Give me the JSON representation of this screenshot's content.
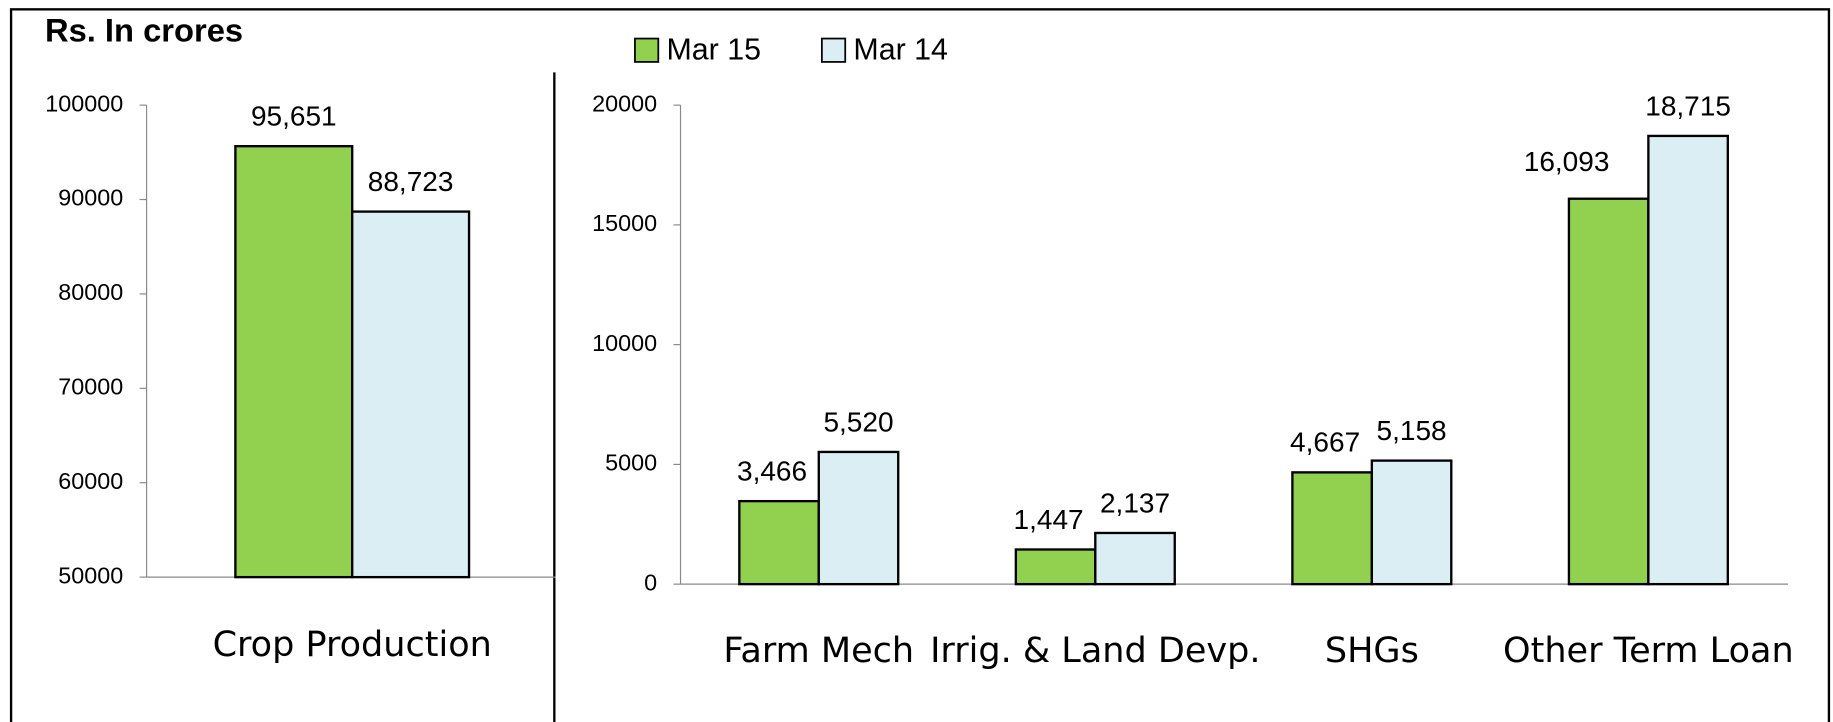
{
  "chart_data": [
    {
      "type": "bar",
      "title": "Rs. In crores",
      "categories": [
        "Crop Production"
      ],
      "series": [
        {
          "color": "#92d050",
          "values": [
            95651
          ],
          "value_labels": [
            "95,651"
          ]
        },
        {
          "color": "#dbeef4",
          "values": [
            88723
          ],
          "value_labels": [
            "88,723"
          ]
        }
      ],
      "ylim": [
        50000,
        100000
      ],
      "yticks": [
        50000,
        60000,
        70000,
        80000,
        90000,
        100000
      ]
    },
    {
      "type": "bar",
      "categories": [
        "Farm Mech",
        "Irrig. & Land Devp.",
        "SHGs",
        "Other Term Loan"
      ],
      "series": [
        {
          "name": "Mar 15",
          "color": "#92d050",
          "values": [
            3466,
            1447,
            4667,
            16093
          ],
          "value_labels": [
            "3,466",
            "1,447",
            "4,667",
            "16,093"
          ]
        },
        {
          "name": "Mar 14",
          "color": "#dbeef4",
          "values": [
            5520,
            2137,
            5158,
            18715
          ],
          "value_labels": [
            "5,520",
            "2,137",
            "5,158",
            "18,715"
          ]
        }
      ],
      "ylim": [
        0,
        20000
      ],
      "yticks": [
        0,
        5000,
        10000,
        15000,
        20000
      ],
      "legend": "top"
    }
  ]
}
